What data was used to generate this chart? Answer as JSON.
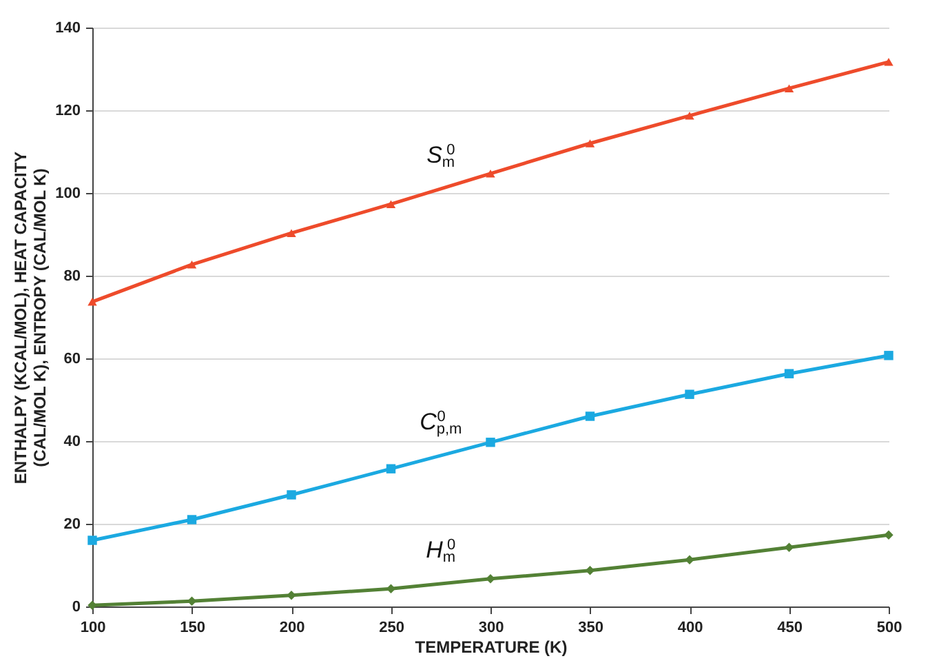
{
  "chart_data": {
    "type": "line",
    "xlabel": "TEMPERATURE (K)",
    "ylabel": "ENTHALPY (KCAL/MOL), HEAT CAPACITY\n(CAL/MOL K), ENTROPY (CAL/MOL K)",
    "x": [
      100,
      150,
      200,
      250,
      300,
      350,
      400,
      450,
      500
    ],
    "series": [
      {
        "name": "S$_{m}$$^{0}$",
        "color": "#ee4b2b",
        "marker": "triangle",
        "values": [
          73.7,
          82.7,
          90.3,
          97.3,
          104.7,
          112,
          118.7,
          125.3,
          131.7
        ]
      },
      {
        "name": "C$_{p,m}$$^{0}$",
        "color": "#1ba9e1",
        "marker": "square",
        "values": [
          16,
          21,
          27,
          33.3,
          39.7,
          46,
          51.3,
          56.3,
          60.7
        ]
      },
      {
        "name": "H$_{m}$$^{0}$",
        "color": "#538135",
        "marker": "diamond",
        "values": [
          0.3,
          1.3,
          2.7,
          4.3,
          6.7,
          8.7,
          11.3,
          14.3,
          17.3
        ]
      }
    ],
    "xlim": [
      100,
      500
    ],
    "xticks": [
      100,
      150,
      200,
      250,
      300,
      350,
      400,
      450,
      500
    ],
    "ylim": [
      0,
      140
    ],
    "yticks": [
      0,
      20,
      40,
      60,
      80,
      100,
      120,
      140
    ],
    "grid": "y",
    "line_style": "solid"
  }
}
